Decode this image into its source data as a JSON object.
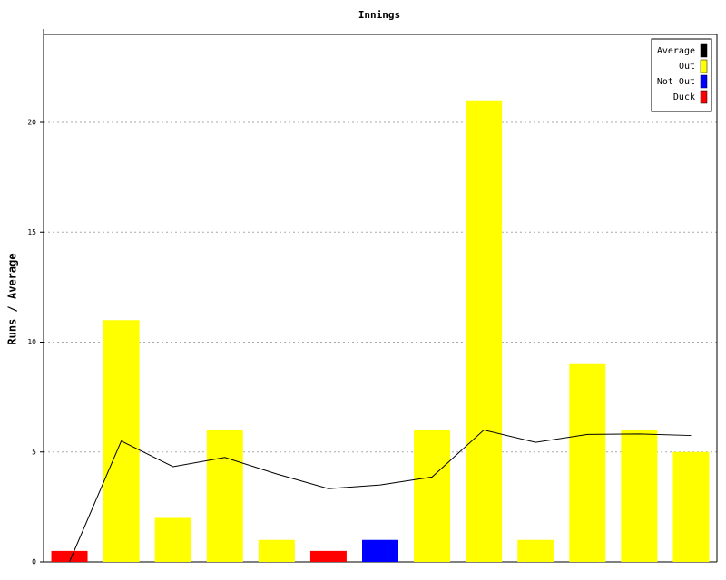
{
  "chart_data": {
    "type": "bar",
    "title": "Innings",
    "ylabel": "Runs / Average",
    "values": [
      0.5,
      11,
      2,
      6,
      1,
      0.5,
      1,
      6,
      21,
      1,
      9,
      6,
      5
    ],
    "colors": [
      "#ff0000",
      "#ffff00",
      "#ffff00",
      "#ffff00",
      "#ffff00",
      "#ff0000",
      "#0000ff",
      "#ffff00",
      "#ffff00",
      "#ffff00",
      "#ffff00",
      "#ffff00",
      "#ffff00"
    ],
    "line": {
      "color": "#000000",
      "values": [
        0,
        5.5,
        4.33,
        4.75,
        4,
        3.33,
        3.5,
        3.86,
        6,
        5.44,
        5.8,
        5.82,
        5.75
      ]
    },
    "legend": {
      "position": "upper right",
      "entries": [
        {
          "name": "Average",
          "color": "#000000"
        },
        {
          "name": "Out",
          "color": "#ffff00"
        },
        {
          "name": "Not Out",
          "color": "#0000ff"
        },
        {
          "name": "Duck",
          "color": "#ff0000"
        }
      ]
    },
    "ylim": [
      0,
      24
    ],
    "yticks": [
      0,
      5,
      10,
      15,
      20
    ],
    "grid": true
  }
}
